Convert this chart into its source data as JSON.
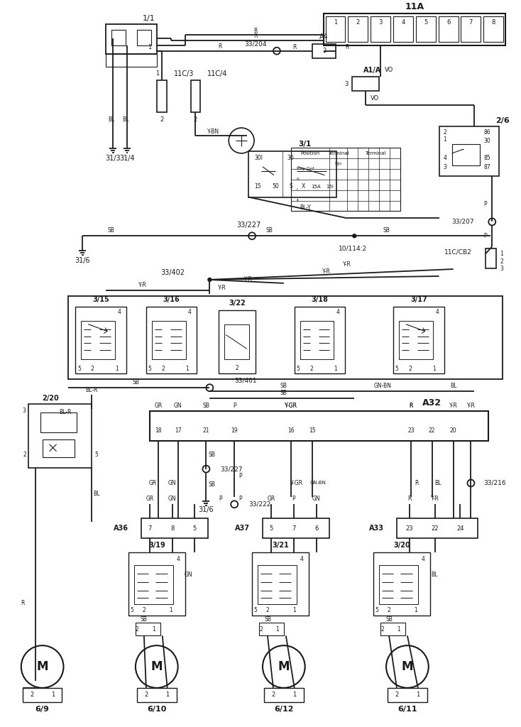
{
  "bg": "#ffffff",
  "lc": "#1a1a1a",
  "lw": 1.3,
  "labels": {
    "1_1": "1/1",
    "11A": "11A",
    "A4": "A4",
    "A1A": "A1/A",
    "2_6": "2/6",
    "11C3": "11C/3",
    "11C4": "11C/4",
    "31_3": "31/3",
    "31_4": "31/4",
    "3_1": "3/1",
    "33_204": "33/204",
    "33_227": "33/227",
    "10_114_2": "10/114:2",
    "11C_CB2": "11C/CB2",
    "33_207": "33/207",
    "31_6": "31/6",
    "33_402": "33/402",
    "3_15": "3/15",
    "3_16": "3/16",
    "3_22": "3/22",
    "3_18": "3/18",
    "3_17": "3/17",
    "33_401": "33/401",
    "2_20": "2/20",
    "A32": "A32",
    "33_227b": "33/227",
    "31_6b": "31/6",
    "33_222": "33/222",
    "33_216": "33/216",
    "A36": "A36",
    "A37": "A37",
    "A33": "A33",
    "3_19": "3/19",
    "3_21": "3/21",
    "3_20": "3/20",
    "6_9": "6/9",
    "6_10": "6/10",
    "6_12": "6/12",
    "6_11": "6/11"
  }
}
